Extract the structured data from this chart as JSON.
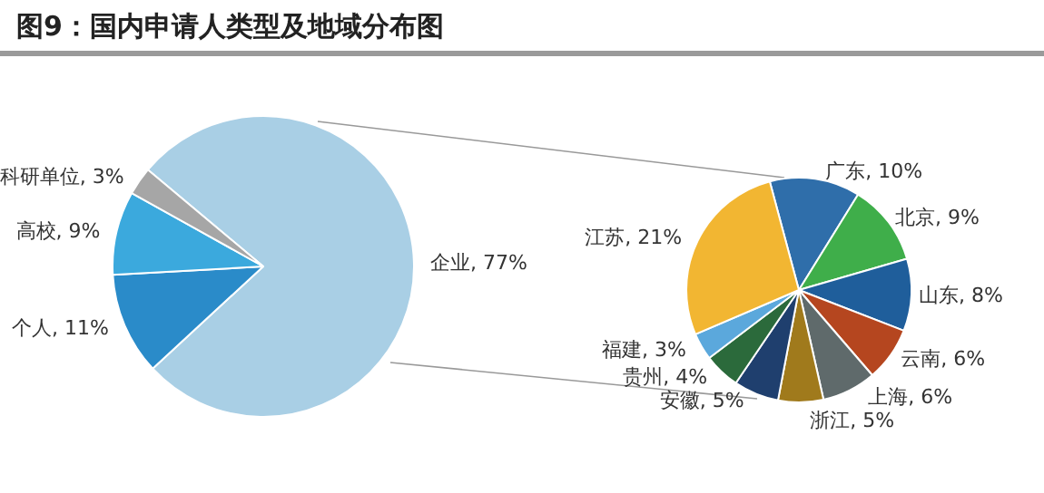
{
  "chart_data": [
    {
      "type": "pie",
      "title": "图9：国内申请人类型及地域分布图",
      "categories": [
        "企业",
        "个人",
        "高校",
        "科研单位"
      ],
      "values": [
        77,
        11,
        9,
        3
      ],
      "value_labels": [
        "77%",
        "11%",
        "9%",
        "3%"
      ],
      "colors": [
        "#a9cfe5",
        "#2a8bc9",
        "#3ba9dd",
        "#a6a6a6"
      ]
    },
    {
      "type": "pie",
      "categories": [
        "广东",
        "北京",
        "山东",
        "云南",
        "上海",
        "浙江",
        "安徽",
        "贵州",
        "福建",
        "江苏"
      ],
      "values": [
        10,
        9,
        8,
        6,
        6,
        5,
        5,
        4,
        3,
        21
      ],
      "value_labels": [
        "10%",
        "9%",
        "8%",
        "6%",
        "6%",
        "5%",
        "5%",
        "4%",
        "3%",
        "21%"
      ],
      "colors": [
        "#2f6eaa",
        "#3fae4a",
        "#1f5e9b",
        "#b5461f",
        "#5f6a6b",
        "#a07a1c",
        "#1f3f6e",
        "#2b6a3b",
        "#5ba8dc",
        "#f2b632"
      ]
    }
  ]
}
